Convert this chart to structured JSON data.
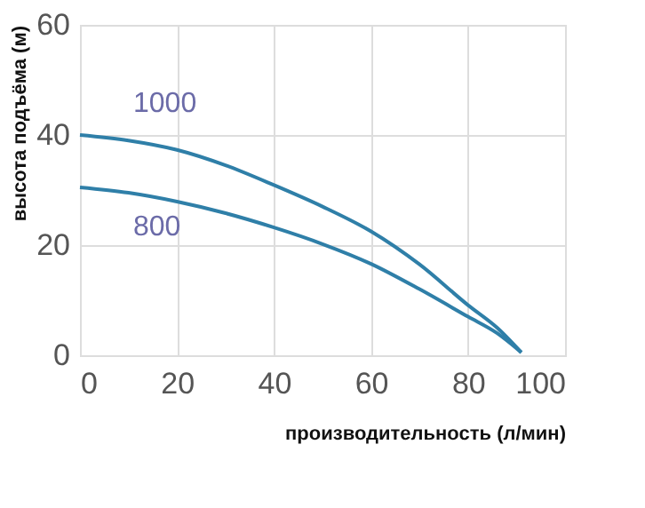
{
  "chart_data": {
    "type": "line",
    "xlabel": "производительность (л/мин)",
    "ylabel": "высота подъёма (м)",
    "xlim": [
      0,
      100
    ],
    "xticks": [
      0,
      20,
      40,
      60,
      80,
      100
    ],
    "ylim": [
      0,
      60
    ],
    "yticks": [
      0,
      20,
      40,
      60
    ],
    "grid": true,
    "marker": "none",
    "line_style": "solid",
    "series": [
      {
        "name": "1000",
        "color": "#2f7fa8",
        "x": [
          0,
          10,
          20,
          30,
          40,
          50,
          60,
          70,
          80,
          86,
          91
        ],
        "values": [
          40,
          39,
          37.3,
          34.5,
          30.9,
          27,
          22.5,
          16.5,
          9.1,
          5,
          0.5
        ]
      },
      {
        "name": "800",
        "color": "#2f7fa8",
        "x": [
          0,
          10,
          20,
          30,
          40,
          50,
          60,
          70,
          80,
          86,
          91
        ],
        "values": [
          30.5,
          29.5,
          27.9,
          25.8,
          23.2,
          20.2,
          16.6,
          12,
          7,
          4,
          0.5
        ]
      }
    ]
  }
}
